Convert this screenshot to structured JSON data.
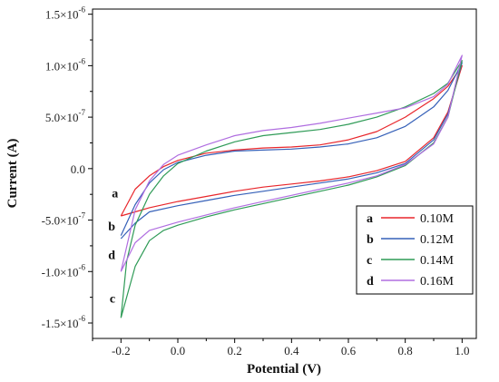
{
  "chart_data": {
    "type": "line",
    "xlabel": "Potential (V)",
    "ylabel": "Current (A)",
    "xlim": [
      -0.3,
      1.05
    ],
    "ylim": [
      -1.65e-06,
      1.55e-06
    ],
    "x_ticks": [
      -0.2,
      0.0,
      0.2,
      0.4,
      0.6,
      0.8,
      1.0
    ],
    "x_tick_labels": [
      "-0.2",
      "0.0",
      "0.2",
      "0.4",
      "0.6",
      "0.8",
      "1.0"
    ],
    "y_ticks": [
      1.5e-06,
      1e-06,
      5e-07,
      0,
      -5e-07,
      -1e-06,
      -1.5e-06
    ],
    "y_tick_labels": [
      {
        "mantissa": "1.5",
        "exp": "-6"
      },
      {
        "mantissa": "1.0",
        "exp": "-6"
      },
      {
        "mantissa": "5.0",
        "exp": "-7"
      },
      {
        "mantissa": "0.0",
        "exp": ""
      },
      {
        "mantissa": "-5.0",
        "exp": "-7"
      },
      {
        "mantissa": "-1.0",
        "exp": "-6"
      },
      {
        "mantissa": "-1.5",
        "exp": "-6"
      }
    ],
    "legend_position": "bottom-right",
    "series": [
      {
        "name": "0.10M",
        "key": "a",
        "color": "#e8262b",
        "upper": {
          "x": [
            -0.2,
            -0.15,
            -0.1,
            -0.05,
            0.0,
            0.1,
            0.2,
            0.3,
            0.4,
            0.5,
            0.6,
            0.7,
            0.8,
            0.9,
            0.95,
            1.0
          ],
          "y": [
            -4.6e-07,
            -2e-07,
            -7e-08,
            2e-08,
            8e-08,
            1.5e-07,
            1.8e-07,
            2e-07,
            2.1e-07,
            2.3e-07,
            2.8e-07,
            3.6e-07,
            5e-07,
            6.8e-07,
            8e-07,
            1e-06
          ]
        },
        "lower": {
          "x": [
            1.0,
            0.95,
            0.9,
            0.8,
            0.7,
            0.6,
            0.5,
            0.4,
            0.3,
            0.2,
            0.1,
            0.0,
            -0.1,
            -0.15,
            -0.2
          ],
          "y": [
            1e-06,
            5.5e-07,
            3e-07,
            7e-08,
            -2e-08,
            -8e-08,
            -1.2e-07,
            -1.5e-07,
            -1.8e-07,
            -2.2e-07,
            -2.7e-07,
            -3.2e-07,
            -3.8e-07,
            -4.2e-07,
            -4.6e-07
          ]
        }
      },
      {
        "name": "0.12M",
        "key": "b",
        "color": "#3560b8",
        "upper": {
          "x": [
            -0.2,
            -0.15,
            -0.1,
            -0.05,
            0.0,
            0.1,
            0.2,
            0.3,
            0.4,
            0.5,
            0.6,
            0.7,
            0.8,
            0.9,
            0.95,
            1.0
          ],
          "y": [
            -6.5e-07,
            -3.5e-07,
            -1.4e-07,
            -1e-08,
            6e-08,
            1.3e-07,
            1.7e-07,
            1.8e-07,
            1.9e-07,
            2.1e-07,
            2.4e-07,
            3e-07,
            4.1e-07,
            6e-07,
            7.6e-07,
            1.03e-06
          ]
        },
        "lower": {
          "x": [
            1.0,
            0.95,
            0.9,
            0.8,
            0.7,
            0.6,
            0.5,
            0.4,
            0.3,
            0.2,
            0.1,
            0.0,
            -0.1,
            -0.15,
            -0.2
          ],
          "y": [
            1.03e-06,
            5.3e-07,
            2.8e-07,
            5e-08,
            -4e-08,
            -1e-07,
            -1.4e-07,
            -1.8e-07,
            -2.2e-07,
            -2.6e-07,
            -3.1e-07,
            -3.6e-07,
            -4.2e-07,
            -5.3e-07,
            -6.8e-07
          ]
        }
      },
      {
        "name": "0.14M",
        "key": "c",
        "color": "#2f9b57",
        "upper": {
          "x": [
            -0.2,
            -0.18,
            -0.15,
            -0.1,
            -0.05,
            0.0,
            0.1,
            0.2,
            0.3,
            0.4,
            0.5,
            0.6,
            0.7,
            0.8,
            0.9,
            0.95,
            1.0
          ],
          "y": [
            -1.45e-06,
            -9e-07,
            -5.5e-07,
            -2.5e-07,
            -7e-08,
            5e-08,
            1.7e-07,
            2.6e-07,
            3.2e-07,
            3.5e-07,
            3.8e-07,
            4.3e-07,
            5e-07,
            6e-07,
            7.3e-07,
            8.3e-07,
            1.05e-06
          ]
        },
        "lower": {
          "x": [
            1.0,
            0.95,
            0.9,
            0.8,
            0.7,
            0.6,
            0.5,
            0.4,
            0.3,
            0.2,
            0.1,
            0.0,
            -0.05,
            -0.1,
            -0.15,
            -0.2
          ],
          "y": [
            1.05e-06,
            5e-07,
            2.5e-07,
            3e-08,
            -8e-08,
            -1.6e-07,
            -2.2e-07,
            -2.8e-07,
            -3.4e-07,
            -4e-07,
            -4.7e-07,
            -5.5e-07,
            -6e-07,
            -7e-07,
            -9.5e-07,
            -1.45e-06
          ]
        }
      },
      {
        "name": "0.16M",
        "key": "d",
        "color": "#b06ee0",
        "upper": {
          "x": [
            -0.2,
            -0.15,
            -0.1,
            -0.05,
            0.0,
            0.1,
            0.2,
            0.3,
            0.4,
            0.5,
            0.6,
            0.7,
            0.8,
            0.9,
            0.95,
            1.0
          ],
          "y": [
            -1e-06,
            -4e-07,
            -1.2e-07,
            4e-08,
            1.3e-07,
            2.3e-07,
            3.2e-07,
            3.7e-07,
            4e-07,
            4.4e-07,
            4.9e-07,
            5.4e-07,
            5.9e-07,
            7e-07,
            8.2e-07,
            1.1e-06
          ]
        },
        "lower": {
          "x": [
            1.0,
            0.95,
            0.9,
            0.8,
            0.7,
            0.6,
            0.5,
            0.4,
            0.3,
            0.2,
            0.1,
            0.0,
            -0.1,
            -0.15,
            -0.2
          ],
          "y": [
            1.1e-06,
            5e-07,
            2.4e-07,
            4e-08,
            -7e-08,
            -1.4e-07,
            -2e-07,
            -2.6e-07,
            -3.2e-07,
            -3.8e-07,
            -4.5e-07,
            -5.2e-07,
            -6e-07,
            -7.2e-07,
            -1e-06
          ]
        }
      }
    ],
    "curve_labels": [
      {
        "key": "a",
        "x": -0.21,
        "y": -2.8e-07
      },
      {
        "key": "b",
        "x": -0.22,
        "y": -6e-07
      },
      {
        "key": "d",
        "x": -0.22,
        "y": -8.8e-07
      },
      {
        "key": "c",
        "x": -0.22,
        "y": -1.3e-06
      }
    ]
  }
}
